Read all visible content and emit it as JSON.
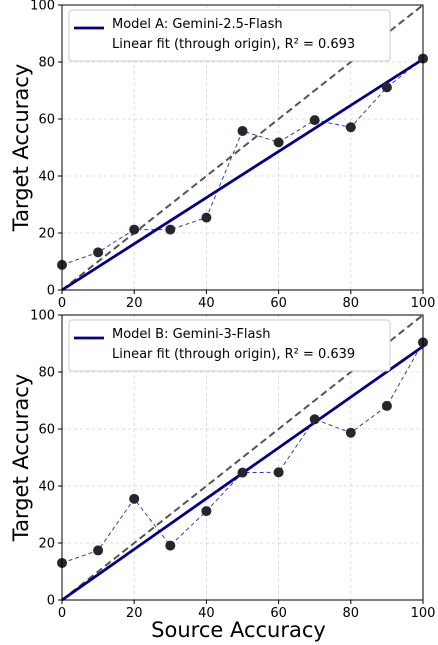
{
  "chart_data": [
    {
      "type": "scatter",
      "legend": {
        "line1": "Model A: Gemini-2.5-Flash",
        "line2": "Linear fit (through origin), R² = 0.693",
        "placement": "top-left"
      },
      "xlim": [
        0,
        100
      ],
      "ylim": [
        0,
        100
      ],
      "xticks": [
        "0",
        "20",
        "40",
        "60",
        "80",
        "100"
      ],
      "yticks": [
        "0",
        "20",
        "40",
        "60",
        "80",
        "100"
      ],
      "ylabel": "Target Accuracy",
      "x": [
        0,
        10,
        20,
        30,
        40,
        50,
        60,
        70,
        80,
        90,
        100
      ],
      "y": [
        8.8,
        13.2,
        21.2,
        21.2,
        25.4,
        55.8,
        51.8,
        59.6,
        57.1,
        71.1,
        81.2
      ],
      "fit_slope": 0.81,
      "grid": true,
      "colors": {
        "points": "#26262e",
        "connector": "#3a3ab4",
        "fit": "#00008b",
        "diagonal": "#555555"
      }
    },
    {
      "type": "scatter",
      "legend": {
        "line1": "Model B: Gemini-3-Flash",
        "line2": "Linear fit (through origin), R² = 0.639",
        "placement": "top-left"
      },
      "xlim": [
        0,
        100
      ],
      "ylim": [
        0,
        100
      ],
      "xticks": [
        "0",
        "20",
        "40",
        "60",
        "80",
        "100"
      ],
      "yticks": [
        "0",
        "20",
        "40",
        "60",
        "80",
        "100"
      ],
      "ylabel": "Target Accuracy",
      "xlabel": "Source Accuracy",
      "x": [
        0,
        10,
        20,
        30,
        40,
        50,
        60,
        70,
        80,
        90,
        100
      ],
      "y": [
        13.0,
        17.4,
        35.5,
        19.1,
        31.2,
        44.7,
        44.8,
        63.4,
        58.7,
        68.1,
        90.4
      ],
      "fit_slope": 0.89,
      "grid": true,
      "colors": {
        "points": "#26262e",
        "connector": "#3a3ab4",
        "fit": "#00008b",
        "diagonal": "#555555"
      }
    }
  ]
}
